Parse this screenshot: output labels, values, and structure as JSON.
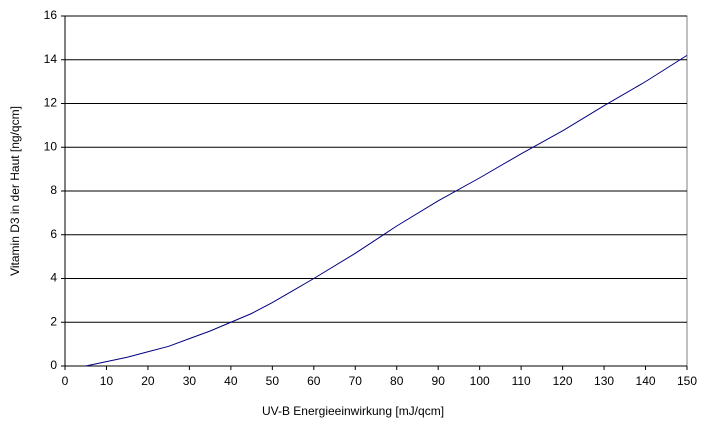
{
  "chart_data": {
    "type": "line",
    "xlabel": "UV-B Energieeinwirkung [mJ/qcm]",
    "ylabel": "Vitamin D3 in der Haut [ng/qcm]",
    "x": [
      5,
      10,
      15,
      20,
      25,
      30,
      35,
      40,
      45,
      50,
      55,
      60,
      70,
      80,
      90,
      100,
      110,
      120,
      130,
      140,
      150
    ],
    "series": [
      {
        "name": "Vitamin D3",
        "color": "#000080",
        "values": [
          0,
          0.2,
          0.4,
          0.65,
          0.9,
          1.25,
          1.6,
          2.0,
          2.4,
          2.9,
          3.45,
          4.0,
          5.15,
          6.4,
          7.55,
          8.6,
          9.7,
          10.75,
          11.9,
          13.0,
          14.2
        ]
      }
    ],
    "xlim": [
      0,
      150
    ],
    "xticks": [
      0,
      10,
      20,
      30,
      40,
      50,
      60,
      70,
      80,
      90,
      100,
      110,
      120,
      130,
      140,
      150
    ],
    "ylim": [
      0,
      16
    ],
    "yticks": [
      0,
      2,
      4,
      6,
      8,
      10,
      12,
      14,
      16
    ],
    "grid": true
  }
}
